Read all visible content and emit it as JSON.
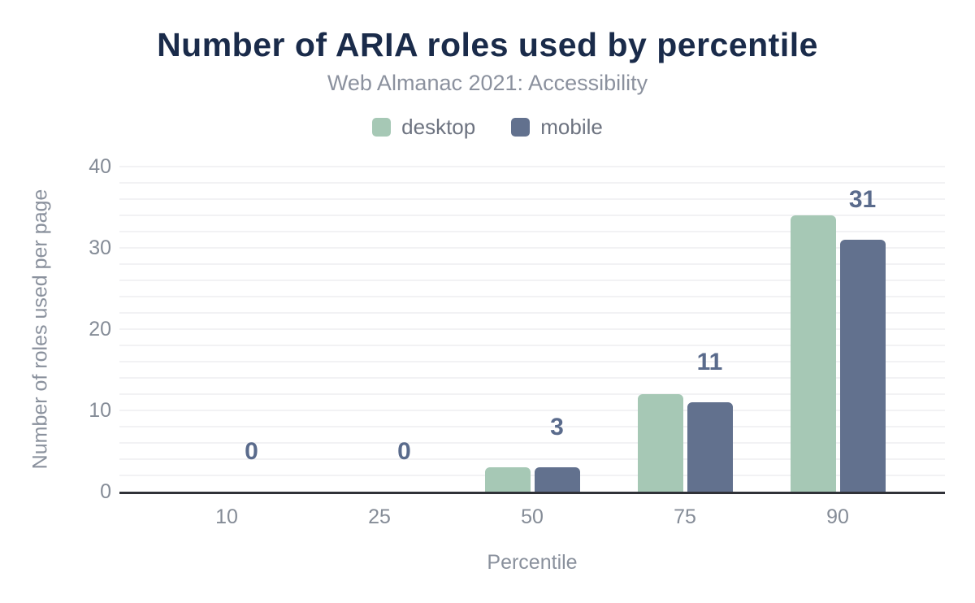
{
  "chart_data": {
    "type": "bar",
    "title": "Number of ARIA roles used by percentile",
    "subtitle": "Web Almanac 2021: Accessibility",
    "xlabel": "Percentile",
    "ylabel": "Number of roles used per page",
    "categories": [
      "10",
      "25",
      "50",
      "75",
      "90"
    ],
    "series": [
      {
        "name": "desktop",
        "color": "#a6c8b5",
        "values": [
          0,
          0,
          3,
          12,
          34
        ]
      },
      {
        "name": "mobile",
        "color": "#62718e",
        "values": [
          0,
          0,
          3,
          11,
          31
        ]
      }
    ],
    "data_labels": {
      "shown_for_series": "mobile",
      "values": [
        "0",
        "0",
        "3",
        "11",
        "31"
      ],
      "color": "#5a6b8c"
    },
    "ylim": [
      0,
      40
    ],
    "yticks": [
      0,
      10,
      20,
      30,
      40
    ],
    "grid": {
      "horizontal_every": 2,
      "color": "#f2f2f4"
    },
    "legend_position": "top",
    "axis_line_color": "#303238"
  }
}
